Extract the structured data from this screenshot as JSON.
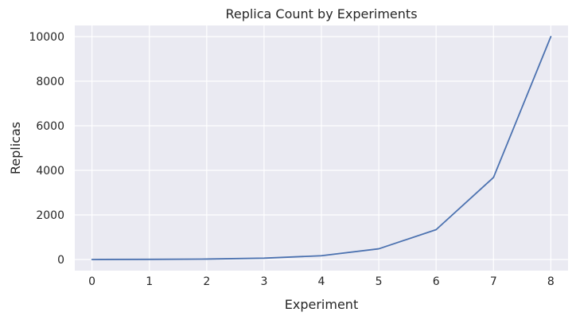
{
  "chart_data": {
    "type": "line",
    "title": "Replica Count by Experiments",
    "xlabel": "Experiment",
    "ylabel": "Replicas",
    "x": [
      0,
      1,
      2,
      3,
      4,
      5,
      6,
      7,
      8
    ],
    "series": [
      {
        "values": [
          1,
          6,
          20,
          60,
          170,
          480,
          1340,
          3680,
          10000
        ],
        "color": "#4c72b0"
      }
    ],
    "xticks": [
      0,
      1,
      2,
      3,
      4,
      5,
      6,
      7,
      8
    ],
    "yticks": [
      0,
      2000,
      4000,
      6000,
      8000,
      10000
    ],
    "xlim": [
      -0.3,
      8.3
    ],
    "ylim": [
      -500,
      10500
    ],
    "grid": true,
    "background_color": "#eaeaf2",
    "grid_color": "#ffffff"
  }
}
